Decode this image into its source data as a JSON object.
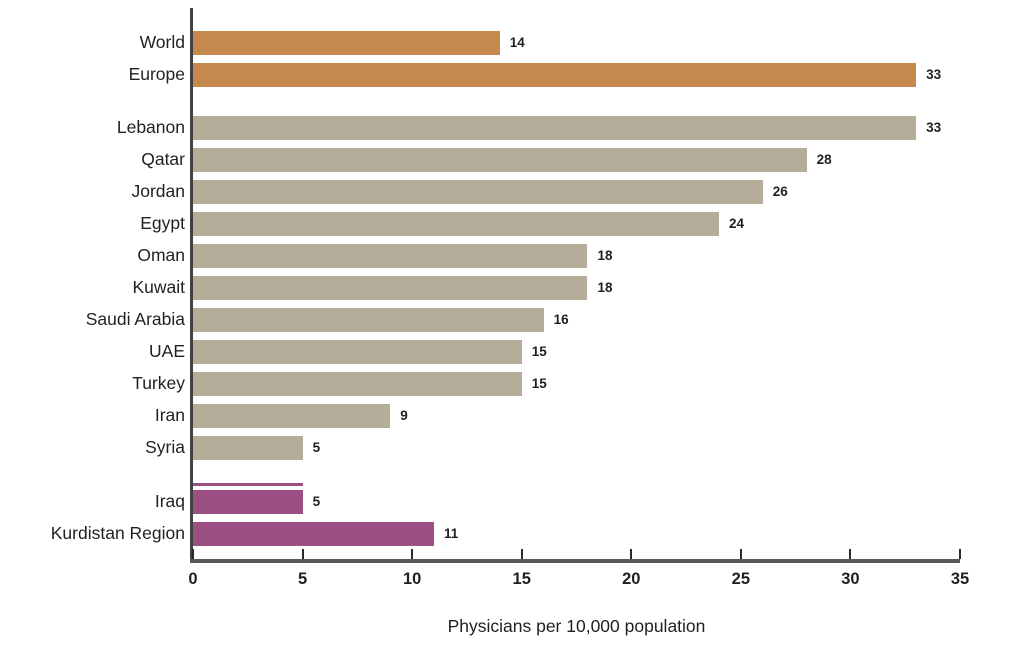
{
  "chart_data": {
    "type": "bar",
    "orientation": "horizontal",
    "title": "",
    "xlabel": "Physicians per 10,000 population",
    "xlim": [
      0,
      35
    ],
    "x_ticks": [
      "0",
      "5",
      "10",
      "15",
      "20",
      "25",
      "30",
      "35"
    ],
    "grid": false,
    "legend": false,
    "groups": {
      "benchmark": {
        "color": "#c68a4f"
      },
      "region": {
        "color": "#b5ac99"
      },
      "iraq": {
        "color": "#9b4e81"
      }
    },
    "rows": [
      {
        "label": "World",
        "value": 14,
        "group": "benchmark"
      },
      {
        "label": "Europe",
        "value": 33,
        "group": "benchmark"
      },
      {
        "label": "Lebanon",
        "value": 33,
        "group": "region"
      },
      {
        "label": "Qatar",
        "value": 28,
        "group": "region"
      },
      {
        "label": "Jordan",
        "value": 26,
        "group": "region"
      },
      {
        "label": "Egypt",
        "value": 24,
        "group": "region"
      },
      {
        "label": "Oman",
        "value": 18,
        "group": "region"
      },
      {
        "label": "Kuwait",
        "value": 18,
        "group": "region"
      },
      {
        "label": "Saudi Arabia",
        "value": 16,
        "group": "region"
      },
      {
        "label": "UAE",
        "value": 15,
        "group": "region"
      },
      {
        "label": "Turkey",
        "value": 15,
        "group": "region"
      },
      {
        "label": "Iran",
        "value": 9,
        "group": "region"
      },
      {
        "label": "Syria",
        "value": 5,
        "group": "region"
      },
      {
        "label": "Iraq",
        "value": 5,
        "group": "iraq",
        "top_stripe": true
      },
      {
        "label": "Kurdistan Region",
        "value": 11,
        "group": "iraq"
      }
    ]
  }
}
